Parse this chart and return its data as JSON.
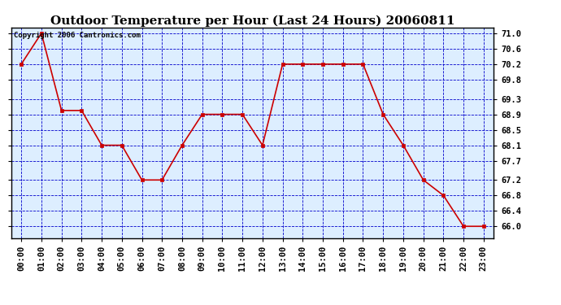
{
  "title": "Outdoor Temperature per Hour (Last 24 Hours) 20060811",
  "copyright_text": "Copyright 2006 Cantronics.com",
  "hours": [
    0,
    1,
    2,
    3,
    4,
    5,
    6,
    7,
    8,
    9,
    10,
    11,
    12,
    13,
    14,
    15,
    16,
    17,
    18,
    19,
    20,
    21,
    22,
    23
  ],
  "x_labels": [
    "00:00",
    "01:00",
    "02:00",
    "03:00",
    "04:00",
    "05:00",
    "06:00",
    "07:00",
    "08:00",
    "09:00",
    "10:00",
    "11:00",
    "12:00",
    "13:00",
    "14:00",
    "15:00",
    "16:00",
    "17:00",
    "18:00",
    "19:00",
    "20:00",
    "21:00",
    "22:00",
    "23:00"
  ],
  "temperatures": [
    70.2,
    71.0,
    69.0,
    69.0,
    68.1,
    68.1,
    67.2,
    67.2,
    68.1,
    68.9,
    68.9,
    68.9,
    68.1,
    70.2,
    70.2,
    70.2,
    70.2,
    70.2,
    68.9,
    68.1,
    67.2,
    66.8,
    66.0,
    66.0
  ],
  "line_color": "#cc0000",
  "marker_color": "#cc0000",
  "fig_bg_color": "#ffffff",
  "plot_bg_color": "#ddeeff",
  "grid_color": "#0000cc",
  "border_color": "#000000",
  "text_color": "#000000",
  "copyright_color": "#000000",
  "ylim_min": 65.7,
  "ylim_max": 71.15,
  "yticks": [
    66.0,
    66.4,
    66.8,
    67.2,
    67.7,
    68.1,
    68.5,
    68.9,
    69.3,
    69.8,
    70.2,
    70.6,
    71.0
  ],
  "title_fontsize": 11,
  "copyright_fontsize": 6.5,
  "tick_fontsize": 7.5
}
